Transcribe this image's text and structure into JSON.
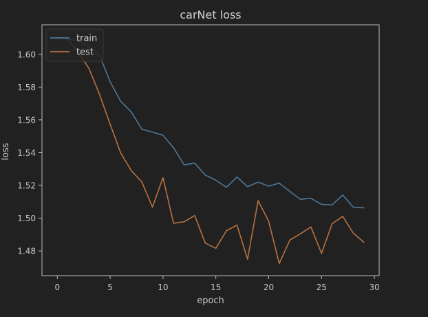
{
  "chart_data": {
    "type": "line",
    "title": "carNet loss",
    "xlabel": "epoch",
    "ylabel": "loss",
    "xlim": [
      -1.45,
      30.45
    ],
    "ylim": [
      1.4649,
      1.618
    ],
    "xticks": [
      0,
      5,
      10,
      15,
      20,
      25,
      30
    ],
    "yticks": [
      1.48,
      1.5,
      1.52,
      1.54,
      1.56,
      1.58,
      1.6
    ],
    "grid": false,
    "legend_position": "top-left",
    "x": [
      0,
      1,
      2,
      3,
      4,
      5,
      6,
      7,
      8,
      9,
      10,
      11,
      12,
      13,
      14,
      15,
      16,
      17,
      18,
      19,
      20,
      21,
      22,
      23,
      24,
      25,
      26,
      27,
      28,
      29
    ],
    "series": [
      {
        "name": "train",
        "color": "#4f7796",
        "values": [
          1.6098,
          1.6096,
          1.6082,
          1.6046,
          1.5993,
          1.5832,
          1.5713,
          1.5648,
          1.5543,
          1.5525,
          1.5506,
          1.5429,
          1.5325,
          1.5336,
          1.5263,
          1.5232,
          1.5188,
          1.5251,
          1.5192,
          1.522,
          1.5195,
          1.5214,
          1.5163,
          1.5115,
          1.5121,
          1.5084,
          1.5081,
          1.5141,
          1.5067,
          1.5063
        ]
      },
      {
        "name": "test",
        "color": "#b87241",
        "values": [
          1.6107,
          1.6091,
          1.6011,
          1.5913,
          1.5755,
          1.5573,
          1.5398,
          1.529,
          1.5221,
          1.5067,
          1.5247,
          1.4969,
          1.4978,
          1.5016,
          1.4848,
          1.4816,
          1.4923,
          1.4958,
          1.4749,
          1.5107,
          1.498,
          1.4723,
          1.4866,
          1.4905,
          1.4946,
          1.4785,
          1.4966,
          1.5011,
          1.4909,
          1.4853
        ]
      }
    ]
  }
}
